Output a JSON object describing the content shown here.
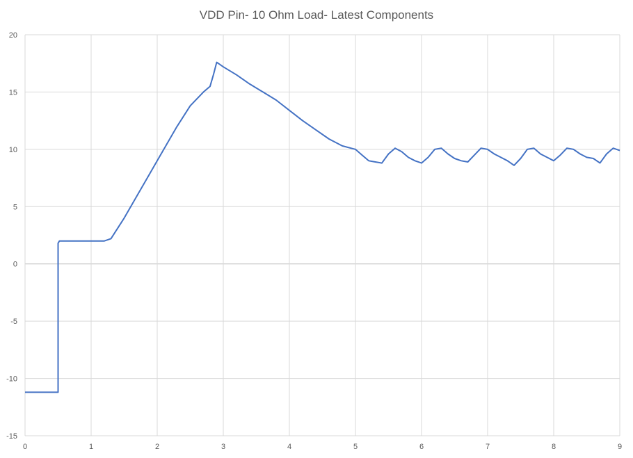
{
  "chart_data": {
    "type": "line",
    "title": "VDD Pin- 10 Ohm Load- Latest Components",
    "xlabel": "",
    "ylabel": "",
    "xlim": [
      0,
      9
    ],
    "ylim": [
      -15,
      20
    ],
    "xticks": [
      "0",
      "1",
      "2",
      "3",
      "4",
      "5",
      "6",
      "7",
      "8",
      "9"
    ],
    "yticks": [
      "20",
      "15",
      "10",
      "5",
      "0",
      "-5",
      "-10",
      "-15"
    ],
    "grid": true,
    "legend": "none",
    "series": [
      {
        "color": "#4472c4",
        "x": [
          0,
          0.5,
          0.5,
          0.52,
          0.6,
          0.8,
          1.0,
          1.2,
          1.3,
          1.5,
          1.7,
          2.0,
          2.3,
          2.5,
          2.7,
          2.8,
          2.85,
          2.9,
          3.0,
          3.2,
          3.4,
          3.6,
          3.8,
          4.0,
          4.2,
          4.4,
          4.6,
          4.8,
          5.0,
          5.1,
          5.2,
          5.3,
          5.4,
          5.5,
          5.6,
          5.7,
          5.8,
          5.9,
          6.0,
          6.1,
          6.2,
          6.3,
          6.4,
          6.5,
          6.6,
          6.7,
          6.8,
          6.9,
          7.0,
          7.1,
          7.2,
          7.3,
          7.4,
          7.5,
          7.6,
          7.7,
          7.8,
          7.9,
          8.0,
          8.1,
          8.2,
          8.3,
          8.4,
          8.5,
          8.6,
          8.7,
          8.8,
          8.9,
          9.0
        ],
        "values": [
          -11.2,
          -11.2,
          1.8,
          2.0,
          2.0,
          2.0,
          2.0,
          2.0,
          2.2,
          4.0,
          6.0,
          9.0,
          12.0,
          13.8,
          15.0,
          15.5,
          16.5,
          17.6,
          17.2,
          16.5,
          15.7,
          15.0,
          14.3,
          13.4,
          12.5,
          11.7,
          10.9,
          10.3,
          10.0,
          9.5,
          9.0,
          8.9,
          8.8,
          9.6,
          10.1,
          9.8,
          9.3,
          9.0,
          8.8,
          9.3,
          10.0,
          10.1,
          9.6,
          9.2,
          9.0,
          8.9,
          9.5,
          10.1,
          10.0,
          9.6,
          9.3,
          9.0,
          8.6,
          9.2,
          10.0,
          10.1,
          9.6,
          9.3,
          9.0,
          9.5,
          10.1,
          10.0,
          9.6,
          9.3,
          9.2,
          8.8,
          9.6,
          10.1,
          9.9
        ]
      }
    ]
  }
}
